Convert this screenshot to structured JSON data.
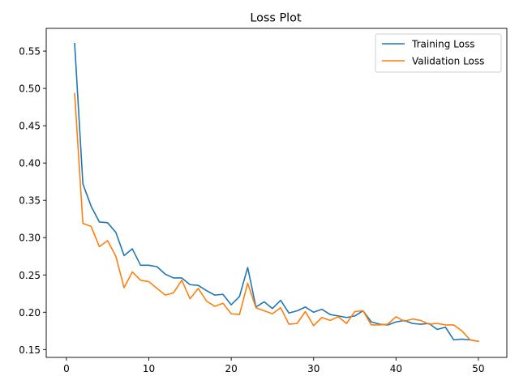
{
  "chart_data": {
    "type": "line",
    "title": "Loss Plot",
    "xlabel": "",
    "ylabel": "",
    "xlim": [
      -2.45,
      53.45
    ],
    "ylim": [
      0.1395,
      0.5805
    ],
    "xticks": [
      0,
      10,
      20,
      30,
      40,
      50
    ],
    "xtick_labels": [
      "0",
      "10",
      "20",
      "30",
      "40",
      "50"
    ],
    "yticks": [
      0.15,
      0.2,
      0.25,
      0.3,
      0.35,
      0.4,
      0.45,
      0.5,
      0.55
    ],
    "ytick_labels": [
      "0.15",
      "0.20",
      "0.25",
      "0.30",
      "0.35",
      "0.40",
      "0.45",
      "0.50",
      "0.55"
    ],
    "grid": false,
    "legend_position": "top-right",
    "x": [
      1,
      2,
      3,
      4,
      5,
      6,
      7,
      8,
      9,
      10,
      11,
      12,
      13,
      14,
      15,
      16,
      17,
      18,
      19,
      20,
      21,
      22,
      23,
      24,
      25,
      26,
      27,
      28,
      29,
      30,
      31,
      32,
      33,
      34,
      35,
      36,
      37,
      38,
      39,
      40,
      41,
      42,
      43,
      44,
      45,
      46,
      47,
      48,
      49,
      50
    ],
    "series": [
      {
        "name": "Training Loss",
        "color": "#1f77b4",
        "values": [
          0.56,
          0.372,
          0.342,
          0.321,
          0.32,
          0.307,
          0.276,
          0.285,
          0.263,
          0.263,
          0.261,
          0.251,
          0.246,
          0.246,
          0.237,
          0.236,
          0.229,
          0.223,
          0.224,
          0.21,
          0.221,
          0.26,
          0.207,
          0.214,
          0.205,
          0.216,
          0.199,
          0.202,
          0.207,
          0.2,
          0.204,
          0.197,
          0.195,
          0.193,
          0.195,
          0.202,
          0.187,
          0.184,
          0.183,
          0.187,
          0.189,
          0.185,
          0.184,
          0.185,
          0.177,
          0.18,
          0.163,
          0.164,
          0.163,
          0.161
        ]
      },
      {
        "name": "Validation Loss",
        "color": "#ff7f0e",
        "values": [
          0.493,
          0.319,
          0.315,
          0.288,
          0.296,
          0.275,
          0.233,
          0.254,
          0.243,
          0.241,
          0.232,
          0.223,
          0.226,
          0.243,
          0.218,
          0.232,
          0.215,
          0.208,
          0.212,
          0.198,
          0.197,
          0.239,
          0.206,
          0.202,
          0.198,
          0.206,
          0.184,
          0.185,
          0.201,
          0.182,
          0.193,
          0.189,
          0.194,
          0.185,
          0.201,
          0.202,
          0.183,
          0.183,
          0.184,
          0.194,
          0.188,
          0.191,
          0.189,
          0.184,
          0.185,
          0.183,
          0.183,
          0.175,
          0.163,
          0.161
        ]
      }
    ]
  }
}
